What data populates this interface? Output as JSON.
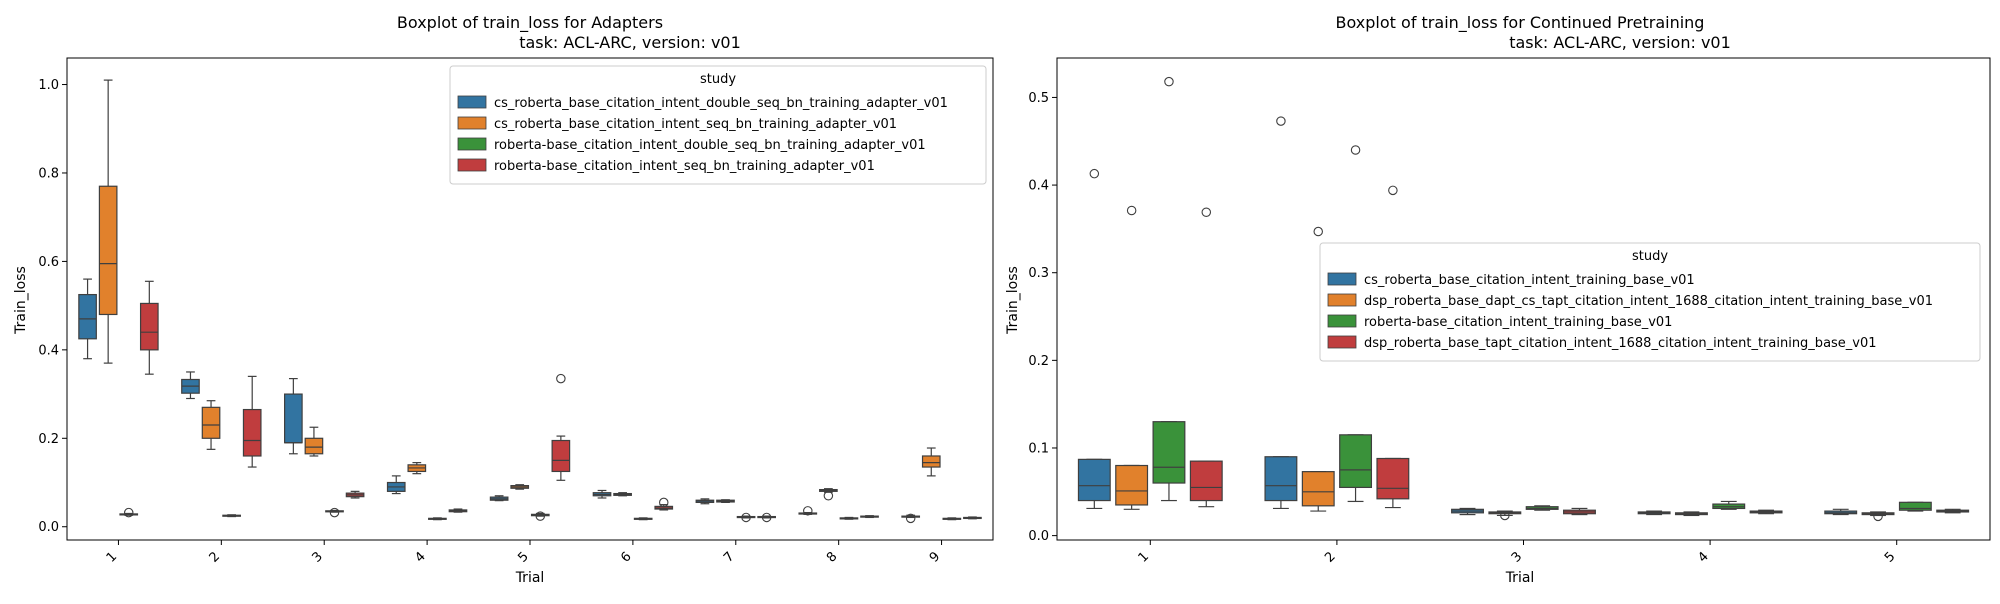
{
  "chart_data": [
    {
      "type": "box",
      "title_line1": "Boxplot of train_loss for Adapters",
      "title_line2": "task: ACL-ARC, version: v01",
      "xlabel": "Trial",
      "ylabel": "Train_loss",
      "ylim": [
        -0.03,
        1.06
      ],
      "yticks": [
        "0.0",
        "0.2",
        "0.4",
        "0.6",
        "0.8",
        "1.0"
      ],
      "categories": [
        "1",
        "2",
        "3",
        "4",
        "5",
        "6",
        "7",
        "8",
        "9"
      ],
      "legend_title": "study",
      "legend_position": "top-right",
      "series": [
        {
          "name": "cs_roberta_base_citation_intent_double_seq_bn_training_adapter_v01",
          "color": "#3274a1",
          "boxes": [
            {
              "min": 0.38,
              "q1": 0.425,
              "med": 0.47,
              "q3": 0.525,
              "max": 0.56,
              "outliers": []
            },
            {
              "min": 0.29,
              "q1": 0.302,
              "med": 0.318,
              "q3": 0.333,
              "max": 0.35,
              "outliers": []
            },
            {
              "min": 0.165,
              "q1": 0.19,
              "med": 0.19,
              "q3": 0.3,
              "max": 0.335,
              "outliers": []
            },
            {
              "min": 0.075,
              "q1": 0.08,
              "med": 0.09,
              "q3": 0.1,
              "max": 0.115,
              "outliers": []
            },
            {
              "min": 0.059,
              "q1": 0.06,
              "med": 0.063,
              "q3": 0.067,
              "max": 0.07,
              "outliers": []
            },
            {
              "min": 0.065,
              "q1": 0.07,
              "med": 0.073,
              "q3": 0.077,
              "max": 0.082,
              "outliers": []
            },
            {
              "min": 0.052,
              "q1": 0.055,
              "med": 0.058,
              "q3": 0.06,
              "max": 0.063,
              "outliers": []
            },
            {
              "min": 0.028,
              "q1": 0.029,
              "med": 0.03,
              "q3": 0.031,
              "max": 0.032,
              "outliers": [
                0.036
              ]
            },
            {
              "min": 0.021,
              "q1": 0.022,
              "med": 0.023,
              "q3": 0.024,
              "max": 0.026,
              "outliers": [
                0.019
              ]
            }
          ]
        },
        {
          "name": "cs_roberta_base_citation_intent_seq_bn_training_adapter_v01",
          "color": "#e1812c",
          "boxes": [
            {
              "min": 0.37,
              "q1": 0.48,
              "med": 0.595,
              "q3": 0.77,
              "max": 1.01,
              "outliers": []
            },
            {
              "min": 0.175,
              "q1": 0.2,
              "med": 0.23,
              "q3": 0.27,
              "max": 0.285,
              "outliers": []
            },
            {
              "min": 0.16,
              "q1": 0.165,
              "med": 0.18,
              "q3": 0.2,
              "max": 0.225,
              "outliers": []
            },
            {
              "min": 0.12,
              "q1": 0.125,
              "med": 0.133,
              "q3": 0.14,
              "max": 0.145,
              "outliers": []
            },
            {
              "min": 0.085,
              "q1": 0.087,
              "med": 0.09,
              "q3": 0.093,
              "max": 0.095,
              "outliers": []
            },
            {
              "min": 0.07,
              "q1": 0.071,
              "med": 0.073,
              "q3": 0.075,
              "max": 0.077,
              "outliers": []
            },
            {
              "min": 0.055,
              "q1": 0.056,
              "med": 0.058,
              "q3": 0.06,
              "max": 0.061,
              "outliers": []
            },
            {
              "min": 0.078,
              "q1": 0.08,
              "med": 0.082,
              "q3": 0.084,
              "max": 0.086,
              "outliers": [
                0.07
              ]
            },
            {
              "min": 0.115,
              "q1": 0.135,
              "med": 0.145,
              "q3": 0.16,
              "max": 0.178,
              "outliers": []
            }
          ]
        },
        {
          "name": "roberta-base_citation_intent_double_seq_bn_training_adapter_v01",
          "color": "#3a923a",
          "boxes": [
            {
              "min": 0.026,
              "q1": 0.027,
              "med": 0.028,
              "q3": 0.029,
              "max": 0.03,
              "outliers": [
                0.032
              ]
            },
            {
              "min": 0.023,
              "q1": 0.024,
              "med": 0.025,
              "q3": 0.026,
              "max": 0.027,
              "outliers": []
            },
            {
              "min": 0.033,
              "q1": 0.034,
              "med": 0.035,
              "q3": 0.036,
              "max": 0.037,
              "outliers": [
                0.032
              ]
            },
            {
              "min": 0.016,
              "q1": 0.017,
              "med": 0.018,
              "q3": 0.019,
              "max": 0.02,
              "outliers": []
            },
            {
              "min": 0.024,
              "q1": 0.025,
              "med": 0.027,
              "q3": 0.028,
              "max": 0.03,
              "outliers": [
                0.024
              ]
            },
            {
              "min": 0.016,
              "q1": 0.017,
              "med": 0.018,
              "q3": 0.019,
              "max": 0.02,
              "outliers": []
            },
            {
              "min": 0.02,
              "q1": 0.021,
              "med": 0.022,
              "q3": 0.023,
              "max": 0.024,
              "outliers": [
                0.021
              ]
            },
            {
              "min": 0.017,
              "q1": 0.018,
              "med": 0.019,
              "q3": 0.02,
              "max": 0.021,
              "outliers": []
            },
            {
              "min": 0.016,
              "q1": 0.017,
              "med": 0.018,
              "q3": 0.019,
              "max": 0.02,
              "outliers": []
            }
          ]
        },
        {
          "name": "roberta-base_citation_intent_seq_bn_training_adapter_v01",
          "color": "#c03d3e",
          "boxes": [
            {
              "min": 0.345,
              "q1": 0.4,
              "med": 0.44,
              "q3": 0.505,
              "max": 0.555,
              "outliers": []
            },
            {
              "min": 0.135,
              "q1": 0.16,
              "med": 0.195,
              "q3": 0.265,
              "max": 0.34,
              "outliers": []
            },
            {
              "min": 0.065,
              "q1": 0.068,
              "med": 0.072,
              "q3": 0.076,
              "max": 0.08,
              "outliers": []
            },
            {
              "min": 0.033,
              "q1": 0.034,
              "med": 0.036,
              "q3": 0.038,
              "max": 0.04,
              "outliers": []
            },
            {
              "min": 0.105,
              "q1": 0.125,
              "med": 0.15,
              "q3": 0.195,
              "max": 0.205,
              "outliers": [
                0.335
              ]
            },
            {
              "min": 0.038,
              "q1": 0.04,
              "med": 0.042,
              "q3": 0.046,
              "max": 0.05,
              "outliers": [
                0.055
              ]
            },
            {
              "min": 0.02,
              "q1": 0.021,
              "med": 0.022,
              "q3": 0.023,
              "max": 0.024,
              "outliers": [
                0.021
              ]
            },
            {
              "min": 0.021,
              "q1": 0.022,
              "med": 0.023,
              "q3": 0.024,
              "max": 0.025,
              "outliers": []
            },
            {
              "min": 0.018,
              "q1": 0.019,
              "med": 0.02,
              "q3": 0.021,
              "max": 0.022,
              "outliers": []
            }
          ]
        }
      ]
    },
    {
      "type": "box",
      "title_line1": "Boxplot of train_loss for Continued Pretraining",
      "title_line2": "task: ACL-ARC, version: v01",
      "xlabel": "Trial",
      "ylabel": "Train_loss",
      "ylim": [
        -0.005,
        0.545
      ],
      "yticks": [
        "0.0",
        "0.1",
        "0.2",
        "0.3",
        "0.4",
        "0.5"
      ],
      "categories": [
        "1",
        "2",
        "3",
        "4",
        "5"
      ],
      "legend_title": "study",
      "legend_position": "center-right",
      "series": [
        {
          "name": "cs_roberta_base_citation_intent_training_base_v01",
          "color": "#3274a1",
          "boxes": [
            {
              "min": 0.031,
              "q1": 0.04,
              "med": 0.057,
              "q3": 0.087,
              "max": 0.087,
              "outliers": [
                0.413
              ]
            },
            {
              "min": 0.031,
              "q1": 0.04,
              "med": 0.057,
              "q3": 0.09,
              "max": 0.09,
              "outliers": [
                0.473
              ]
            },
            {
              "min": 0.024,
              "q1": 0.026,
              "med": 0.028,
              "q3": 0.03,
              "max": 0.031,
              "outliers": []
            },
            {
              "min": 0.024,
              "q1": 0.025,
              "med": 0.026,
              "q3": 0.027,
              "max": 0.028,
              "outliers": []
            },
            {
              "min": 0.024,
              "q1": 0.025,
              "med": 0.026,
              "q3": 0.028,
              "max": 0.03,
              "outliers": []
            }
          ]
        },
        {
          "name": "dsp_roberta_base_dapt_cs_tapt_citation_intent_1688_citation_intent_training_base_v01",
          "color": "#e1812c",
          "boxes": [
            {
              "min": 0.03,
              "q1": 0.035,
              "med": 0.051,
              "q3": 0.08,
              "max": 0.08,
              "outliers": [
                0.371
              ]
            },
            {
              "min": 0.028,
              "q1": 0.034,
              "med": 0.05,
              "q3": 0.073,
              "max": 0.073,
              "outliers": [
                0.347
              ]
            },
            {
              "min": 0.023,
              "q1": 0.025,
              "med": 0.026,
              "q3": 0.027,
              "max": 0.028,
              "outliers": [
                0.023
              ]
            },
            {
              "min": 0.023,
              "q1": 0.024,
              "med": 0.025,
              "q3": 0.026,
              "max": 0.027,
              "outliers": []
            },
            {
              "min": 0.023,
              "q1": 0.024,
              "med": 0.025,
              "q3": 0.026,
              "max": 0.027,
              "outliers": [
                0.022
              ]
            }
          ]
        },
        {
          "name": "roberta-base_citation_intent_training_base_v01",
          "color": "#3a923a",
          "boxes": [
            {
              "min": 0.04,
              "q1": 0.06,
              "med": 0.078,
              "q3": 0.13,
              "max": 0.13,
              "outliers": [
                0.518
              ]
            },
            {
              "min": 0.039,
              "q1": 0.055,
              "med": 0.075,
              "q3": 0.115,
              "max": 0.115,
              "outliers": [
                0.44
              ]
            },
            {
              "min": 0.029,
              "q1": 0.03,
              "med": 0.031,
              "q3": 0.033,
              "max": 0.034,
              "outliers": []
            },
            {
              "min": 0.03,
              "q1": 0.031,
              "med": 0.033,
              "q3": 0.036,
              "max": 0.039,
              "outliers": []
            },
            {
              "min": 0.028,
              "q1": 0.029,
              "med": 0.031,
              "q3": 0.038,
              "max": 0.038,
              "outliers": []
            }
          ]
        },
        {
          "name": "dsp_roberta_base_tapt_citation_intent_1688_citation_intent_training_base_v01",
          "color": "#c03d3e",
          "boxes": [
            {
              "min": 0.033,
              "q1": 0.04,
              "med": 0.055,
              "q3": 0.085,
              "max": 0.085,
              "outliers": [
                0.369
              ]
            },
            {
              "min": 0.032,
              "q1": 0.042,
              "med": 0.054,
              "q3": 0.088,
              "max": 0.088,
              "outliers": [
                0.394
              ]
            },
            {
              "min": 0.024,
              "q1": 0.025,
              "med": 0.027,
              "q3": 0.029,
              "max": 0.031,
              "outliers": []
            },
            {
              "min": 0.025,
              "q1": 0.026,
              "med": 0.027,
              "q3": 0.028,
              "max": 0.029,
              "outliers": []
            },
            {
              "min": 0.026,
              "q1": 0.027,
              "med": 0.028,
              "q3": 0.029,
              "max": 0.03,
              "outliers": []
            }
          ]
        }
      ]
    }
  ]
}
